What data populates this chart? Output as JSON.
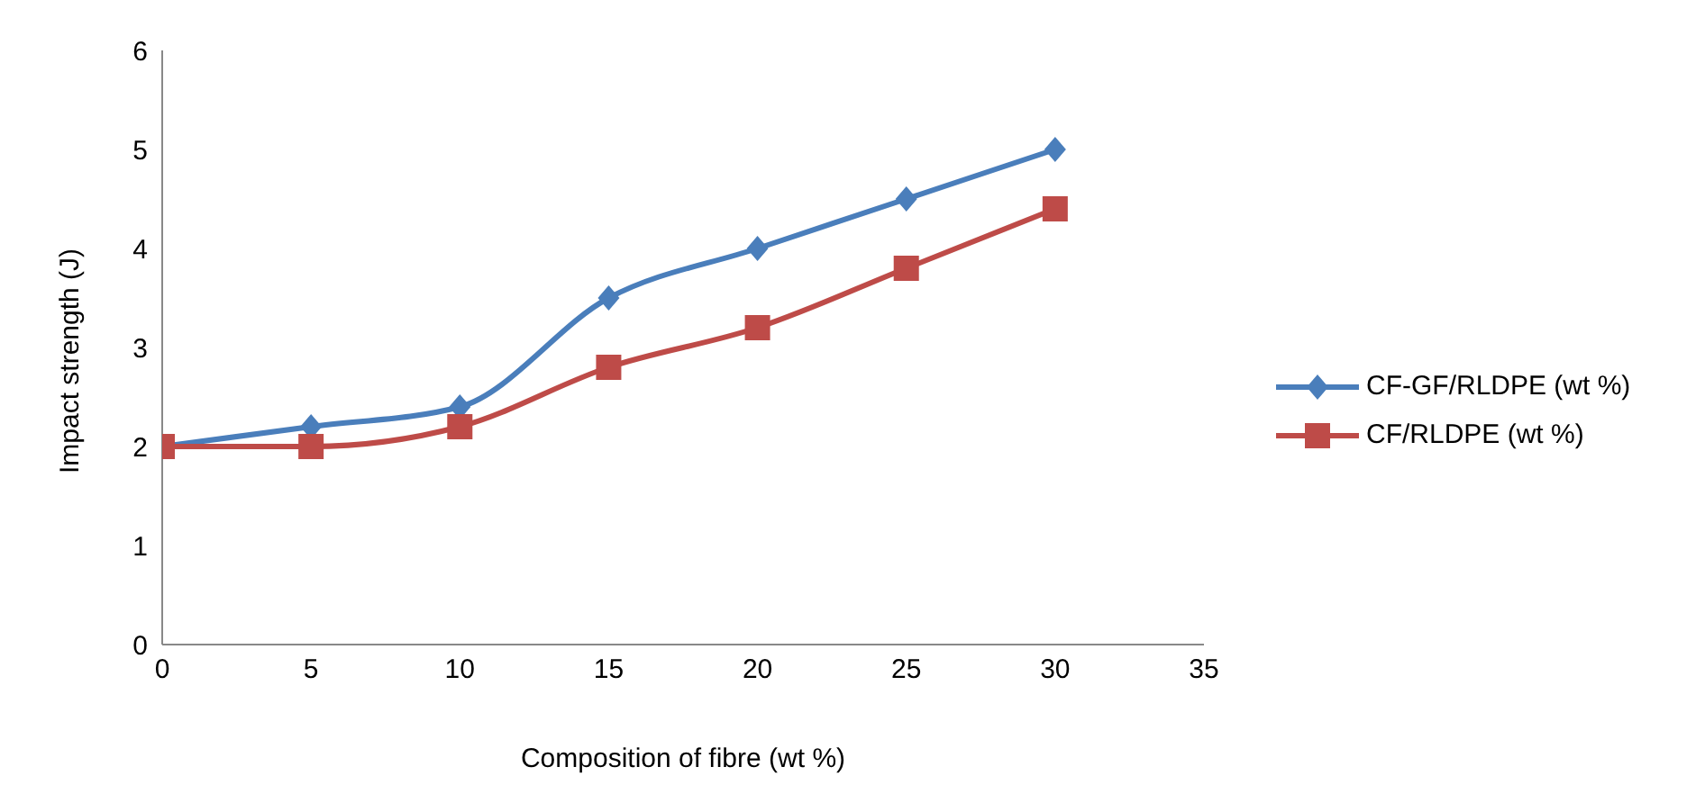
{
  "chart_data": {
    "type": "line",
    "xlabel": "Composition of fibre (wt %)",
    "ylabel": "Impact strength (J)",
    "x": [
      0,
      5,
      10,
      15,
      20,
      25,
      30
    ],
    "series": [
      {
        "name": "CF-GF/RLDPE (wt %)",
        "color": "#4a7ebb",
        "marker": "diamond",
        "values": [
          2,
          2.2,
          2.4,
          3.5,
          4,
          4.5,
          5
        ]
      },
      {
        "name": "CF/RLDPE (wt %)",
        "color": "#be4b48",
        "marker": "square",
        "values": [
          2,
          2,
          2.2,
          2.8,
          3.2,
          3.8,
          4.4
        ]
      }
    ],
    "xlim": [
      0,
      35
    ],
    "xticks": [
      0,
      5,
      10,
      15,
      20,
      25,
      30,
      35
    ],
    "ylim": [
      0,
      6
    ],
    "yticks": [
      0,
      1,
      2,
      3,
      4,
      5,
      6
    ],
    "grid": false,
    "legend": "right",
    "line_style": "solid"
  }
}
